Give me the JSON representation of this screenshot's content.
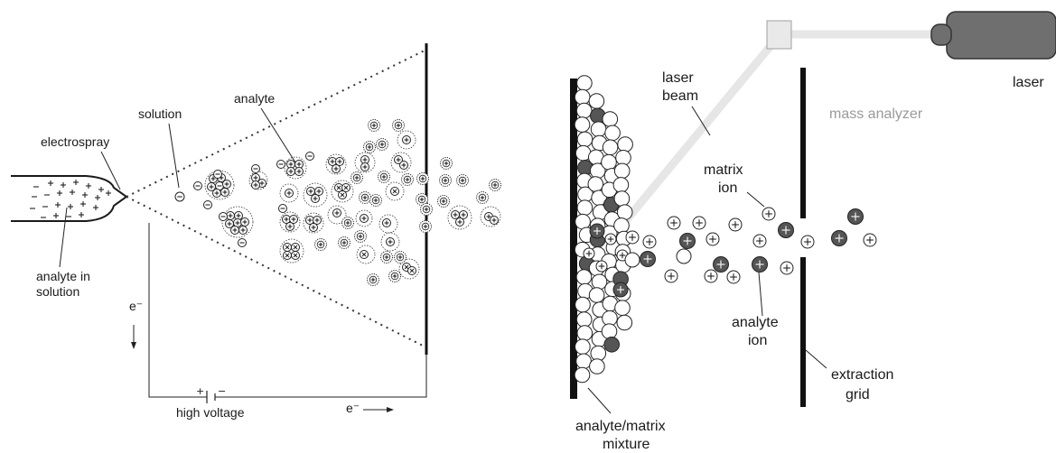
{
  "colors": {
    "ink": "#1a1a1a",
    "analyte_fill": "#555555",
    "laser_body": "#6f6f6f",
    "beam": "#e6e6e6",
    "mirror": "#e9e9e9",
    "label_grey": "#9a9a9a"
  },
  "esi": {
    "electrospray": "electrospray",
    "solution": "solution",
    "analyte": "analyte",
    "analyte_in_solution_line1": "analyte in",
    "analyte_in_solution_line2": "solution",
    "electron_left": "e⁻",
    "electron_bottom": "e⁻",
    "high_voltage": "high voltage",
    "battery_plus": "+",
    "battery_minus": "−"
  },
  "maldi": {
    "laser": "laser",
    "laser_beam_line1": "laser",
    "laser_beam_line2": "beam",
    "mass_analyzer": "mass analyzer",
    "matrix_ion_line1": "matrix",
    "matrix_ion_line2": "ion",
    "analyte_ion_line1": "analyte",
    "analyte_ion_line2": "ion",
    "extraction_grid_line1": "extraction",
    "extraction_grid_line2": "grid",
    "mixture_line1": "analyte/matrix",
    "mixture_line2": "mixture"
  }
}
